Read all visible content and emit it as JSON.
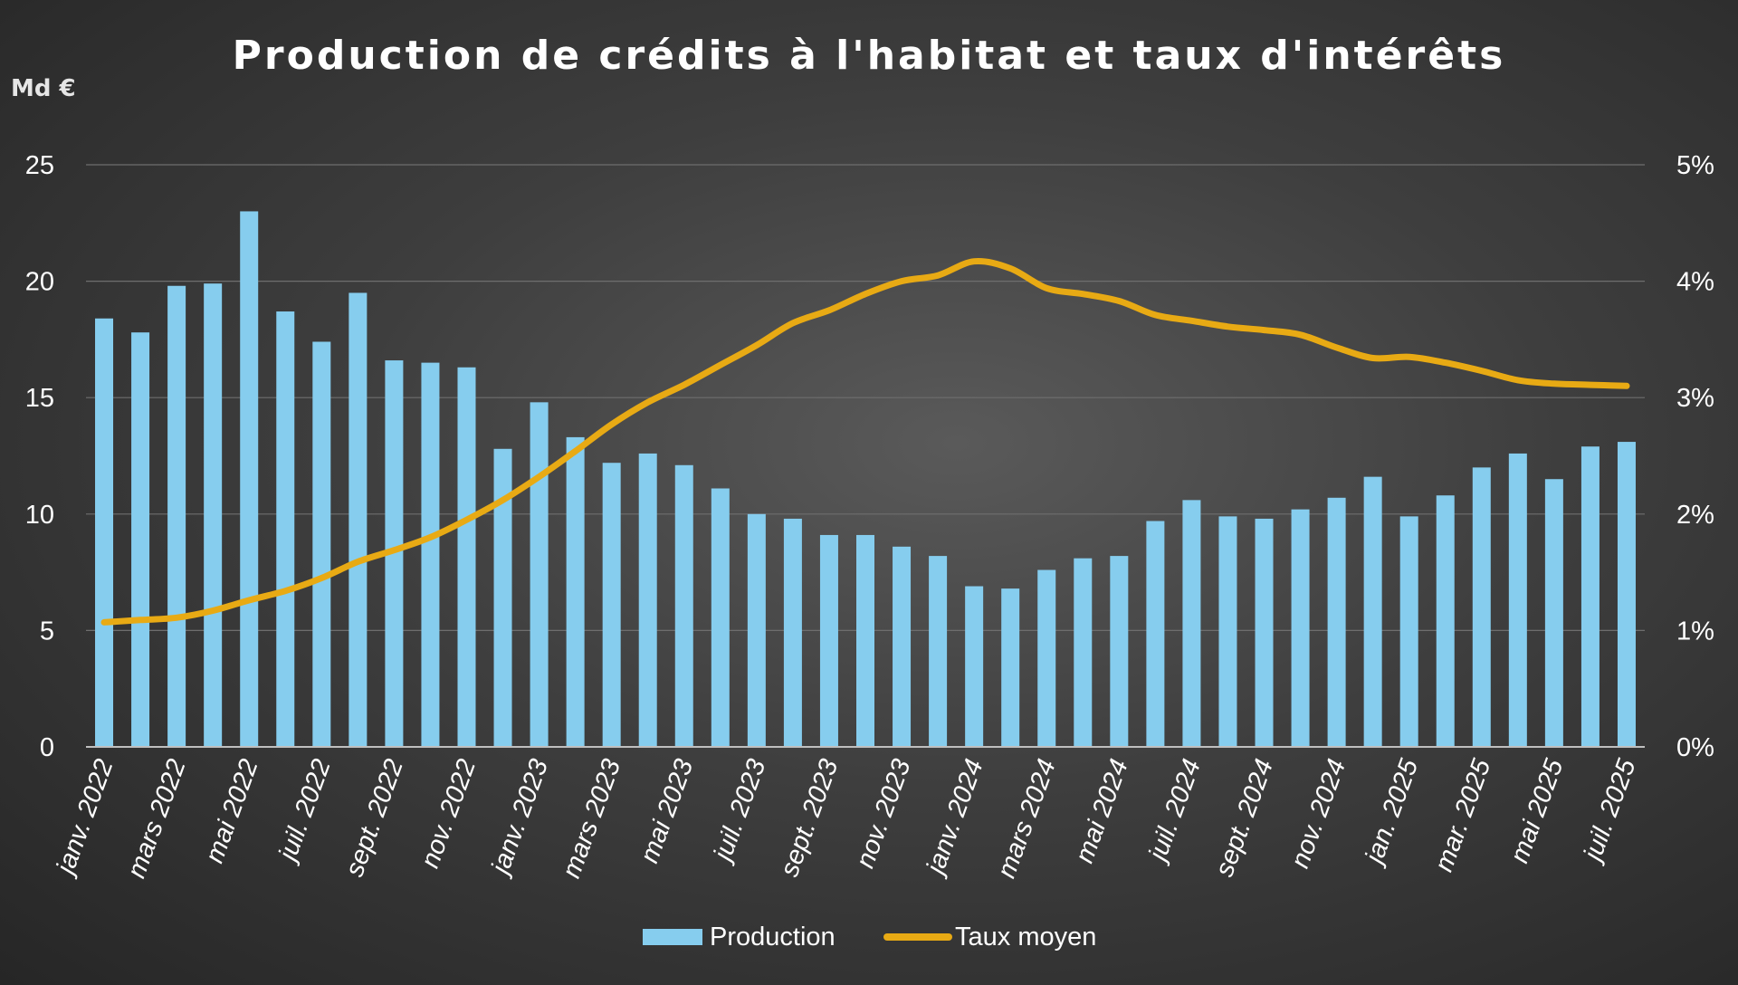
{
  "chart_data": {
    "type": "bar",
    "title": "Production de crédits à l'habitat et taux d'intérêts",
    "y_unit_label": "Md €",
    "ylim": [
      0,
      25
    ],
    "y_ticks": [
      "0",
      "5",
      "10",
      "15",
      "20",
      "25"
    ],
    "y2lim": [
      0,
      5
    ],
    "y2_ticks": [
      "0%",
      "1%",
      "2%",
      "3%",
      "4%",
      "5%"
    ],
    "grid": true,
    "legend_position": "bottom",
    "x_tick_labels": [
      "janv. 2022",
      "mars 2022",
      "mai 2022",
      "juil. 2022",
      "sept. 2022",
      "nov. 2022",
      "janv. 2023",
      "mars 2023",
      "mai 2023",
      "juil. 2023",
      "sept. 2023",
      "nov. 2023",
      "janv. 2024",
      "mars 2024",
      "mai 2024",
      "juil. 2024",
      "sept. 2024",
      "nov. 2024",
      "jan. 2025",
      "mar. 2025",
      "mai 2025",
      "juil. 2025"
    ],
    "series": [
      {
        "name": "Production",
        "type": "bar",
        "axis": "left",
        "color": "#86CDEE",
        "values": [
          18.4,
          17.8,
          19.8,
          19.9,
          23.0,
          18.7,
          17.4,
          19.5,
          16.6,
          16.5,
          16.3,
          12.8,
          14.8,
          13.3,
          12.2,
          12.6,
          12.1,
          11.1,
          10.0,
          9.8,
          9.1,
          9.1,
          8.6,
          8.2,
          6.9,
          6.8,
          7.6,
          8.1,
          8.2,
          9.7,
          10.6,
          9.9,
          9.8,
          10.2,
          10.7,
          11.6,
          9.9,
          10.8,
          12.0,
          12.6,
          11.5,
          12.9,
          13.1
        ]
      },
      {
        "name": "Taux moyen",
        "type": "line",
        "axis": "right",
        "color": "#E8AA14",
        "values": [
          1.07,
          1.09,
          1.11,
          1.17,
          1.26,
          1.34,
          1.45,
          1.59,
          1.69,
          1.8,
          1.95,
          2.12,
          2.32,
          2.54,
          2.77,
          2.96,
          3.11,
          3.28,
          3.45,
          3.64,
          3.75,
          3.89,
          4.0,
          4.05,
          4.17,
          4.11,
          3.94,
          3.89,
          3.83,
          3.71,
          3.66,
          3.61,
          3.58,
          3.54,
          3.43,
          3.34,
          3.35,
          3.3,
          3.23,
          3.15,
          3.12,
          3.11,
          3.1
        ]
      }
    ]
  }
}
